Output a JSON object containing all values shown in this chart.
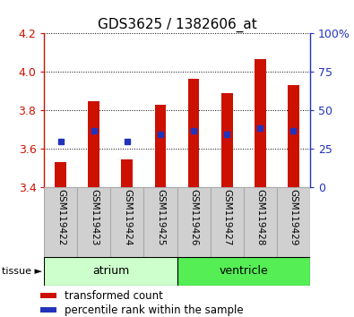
{
  "title": "GDS3625 / 1382606_at",
  "samples": [
    "GSM119422",
    "GSM119423",
    "GSM119424",
    "GSM119425",
    "GSM119426",
    "GSM119427",
    "GSM119428",
    "GSM119429"
  ],
  "transformed_counts": [
    3.53,
    3.845,
    3.545,
    3.83,
    3.965,
    3.89,
    4.065,
    3.93
  ],
  "percentile_ranks": [
    3.635,
    3.695,
    3.638,
    3.672,
    3.695,
    3.675,
    3.705,
    3.695
  ],
  "bar_bottom": 3.4,
  "ylim_left": [
    3.4,
    4.2
  ],
  "ylim_right": [
    0,
    100
  ],
  "yticks_left": [
    3.4,
    3.6,
    3.8,
    4.0,
    4.2
  ],
  "yticks_right": [
    0,
    25,
    50,
    75,
    100
  ],
  "ytick_labels_right": [
    "0",
    "25",
    "50",
    "75",
    "100%"
  ],
  "bar_color": "#cc1100",
  "dot_color": "#2233bb",
  "tissue_groups": [
    {
      "label": "atrium",
      "samples": [
        0,
        1,
        2,
        3
      ],
      "color": "#ccffcc"
    },
    {
      "label": "ventricle",
      "samples": [
        4,
        5,
        6,
        7
      ],
      "color": "#55ee55"
    }
  ],
  "tissue_label": "tissue",
  "legend_bar_label": "transformed count",
  "legend_dot_label": "percentile rank within the sample",
  "bar_color_red": "#cc1100",
  "dot_color_blue": "#2233bb",
  "left_axis_color": "#cc1100",
  "right_axis_color": "#2233bb",
  "bar_width": 0.35,
  "label_gray": "#d0d0d0",
  "label_gray_border": "#aaaaaa"
}
